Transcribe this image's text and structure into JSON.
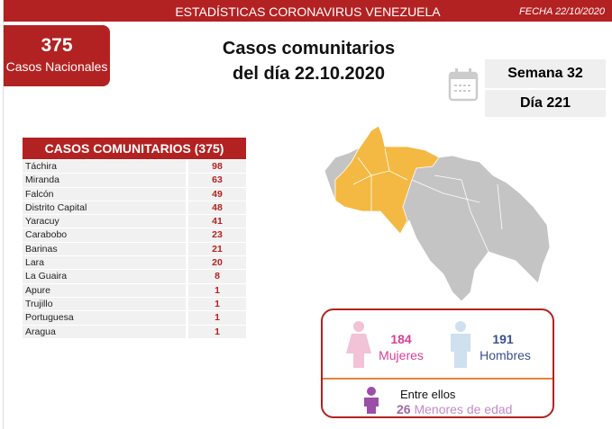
{
  "header": {
    "title": "ESTADÍSTICAS CORONAVIRUS VENEZUELA",
    "date": "FECHA 22/10/2020"
  },
  "national": {
    "count": "375",
    "label": "Casos Nacionales"
  },
  "title": {
    "line1": "Casos comunitarios",
    "line2": "del día 22.10.2020"
  },
  "calendar": {
    "icon": "calendar-icon",
    "week": "Semana 32",
    "day": "Día 221"
  },
  "table": {
    "header": "CASOS COMUNITARIOS (375)",
    "rows": [
      {
        "state": "Táchira",
        "cases": "98"
      },
      {
        "state": "Miranda",
        "cases": "63"
      },
      {
        "state": "Falcón",
        "cases": "49"
      },
      {
        "state": "Distrito Capital",
        "cases": "48"
      },
      {
        "state": "Yaracuy",
        "cases": "41"
      },
      {
        "state": "Carabobo",
        "cases": "23"
      },
      {
        "state": "Barinas",
        "cases": "21"
      },
      {
        "state": "Lara",
        "cases": "20"
      },
      {
        "state": "La Guaira",
        "cases": "8"
      },
      {
        "state": "Apure",
        "cases": "1"
      },
      {
        "state": "Trujillo",
        "cases": "1"
      },
      {
        "state": "Portuguesa",
        "cases": "1"
      },
      {
        "state": "Aragua",
        "cases": "1"
      }
    ]
  },
  "gender": {
    "women_count": "184",
    "women_label": "Mujeres",
    "men_count": "191",
    "men_label": "Hombres",
    "minors_intro": "Entre ellos",
    "minors_count": "26",
    "minors_label": "Menores de edad"
  },
  "colors": {
    "brand": "#b32222",
    "highlight": "#f4b942",
    "map_base": "#c4c4c4",
    "women": "#d63f95",
    "men": "#3c4f8f",
    "minors": "#9b4fa8"
  }
}
